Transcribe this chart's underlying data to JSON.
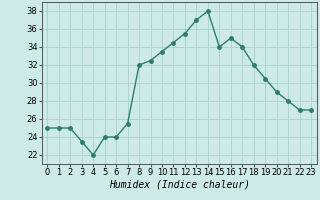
{
  "x": [
    0,
    1,
    2,
    3,
    4,
    5,
    6,
    7,
    8,
    9,
    10,
    11,
    12,
    13,
    14,
    15,
    16,
    17,
    18,
    19,
    20,
    21,
    22,
    23
  ],
  "y": [
    25.0,
    25.0,
    25.0,
    23.5,
    22.0,
    24.0,
    24.0,
    25.5,
    32.0,
    32.5,
    33.5,
    34.5,
    35.5,
    37.0,
    38.0,
    34.0,
    35.0,
    34.0,
    32.0,
    30.5,
    29.0,
    28.0,
    27.0,
    27.0
  ],
  "line_color": "#2e7d6e",
  "marker": "o",
  "marker_size": 2.5,
  "bg_color": "#cdeae7",
  "grid_color": "#aed4d0",
  "xlabel": "Humidex (Indice chaleur)",
  "xlabel_fontsize": 7,
  "tick_fontsize": 6,
  "ylim": [
    21,
    39
  ],
  "yticks": [
    22,
    24,
    26,
    28,
    30,
    32,
    34,
    36,
    38
  ],
  "xlim": [
    -0.5,
    23.5
  ],
  "xticks": [
    0,
    1,
    2,
    3,
    4,
    5,
    6,
    7,
    8,
    9,
    10,
    11,
    12,
    13,
    14,
    15,
    16,
    17,
    18,
    19,
    20,
    21,
    22,
    23
  ]
}
